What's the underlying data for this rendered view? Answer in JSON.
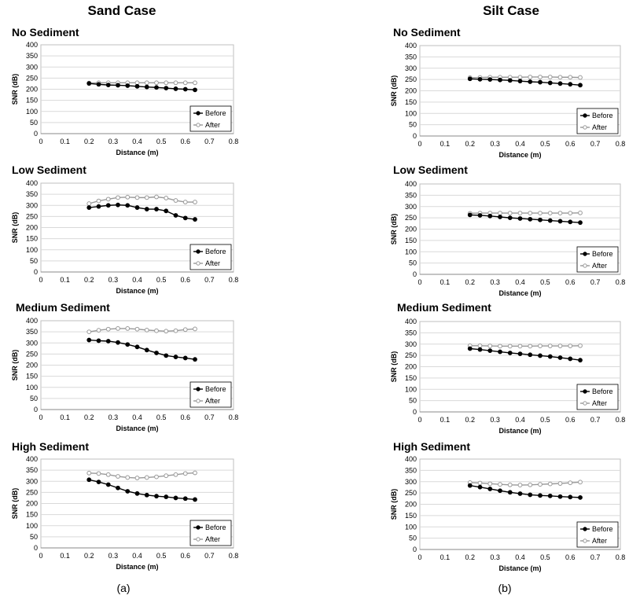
{
  "titles": {
    "left": "Sand Case",
    "right": "Silt Case",
    "left_caption": "(a)",
    "right_caption": "(b)"
  },
  "chart_data": [
    {
      "type": "line",
      "case": "Sand Case",
      "title": "No Sediment",
      "xlabel": "Distance (m)",
      "ylabel": "SNR (dB)",
      "xlim": [
        0,
        0.8
      ],
      "ylim": [
        0,
        400
      ],
      "xticks": [
        "0",
        "0.1",
        "0.2",
        "0.3",
        "0.4",
        "0.5",
        "0.6",
        "0.7",
        "0.8"
      ],
      "yticks": [
        "0",
        "50",
        "100",
        "150",
        "200",
        "250",
        "300",
        "350",
        "400"
      ],
      "grid": true,
      "legend": "bottom-right",
      "x": [
        0.2,
        0.24,
        0.28,
        0.32,
        0.36,
        0.4,
        0.44,
        0.48,
        0.52,
        0.56,
        0.6,
        0.64
      ],
      "series": [
        {
          "name": "Before",
          "color": "#000000",
          "marker": "filled-circle",
          "values": [
            226,
            222,
            219,
            218,
            216,
            213,
            210,
            208,
            205,
            202,
            200,
            197
          ]
        },
        {
          "name": "After",
          "color": "#999999",
          "marker": "open-circle",
          "values": [
            228,
            229,
            229,
            229,
            229,
            229,
            229,
            229,
            229,
            229,
            229,
            229
          ]
        }
      ]
    },
    {
      "type": "line",
      "case": "Sand Case",
      "title": "Low Sediment",
      "xlabel": "Distance (m)",
      "ylabel": "SNR (dB)",
      "xlim": [
        0,
        0.8
      ],
      "ylim": [
        0,
        400
      ],
      "xticks": [
        "0",
        "0.1",
        "0.2",
        "0.3",
        "0.4",
        "0.5",
        "0.6",
        "0.7",
        "0.8"
      ],
      "yticks": [
        "0",
        "50",
        "100",
        "150",
        "200",
        "250",
        "300",
        "350",
        "400"
      ],
      "grid": true,
      "legend": "bottom-right",
      "x": [
        0.2,
        0.24,
        0.28,
        0.32,
        0.36,
        0.4,
        0.44,
        0.48,
        0.52,
        0.56,
        0.6,
        0.64
      ],
      "series": [
        {
          "name": "Before",
          "color": "#000000",
          "marker": "filled-circle",
          "values": [
            290,
            295,
            300,
            302,
            300,
            290,
            283,
            283,
            275,
            255,
            243,
            237
          ]
        },
        {
          "name": "After",
          "color": "#999999",
          "marker": "open-circle",
          "values": [
            308,
            320,
            328,
            335,
            337,
            335,
            335,
            338,
            333,
            322,
            315,
            315
          ]
        }
      ]
    },
    {
      "type": "line",
      "case": "Sand Case",
      "title": "Medium Sediment",
      "xlabel": "Distance (m)",
      "ylabel": "SNR (dB)",
      "xlim": [
        0,
        0.8
      ],
      "ylim": [
        0,
        400
      ],
      "xticks": [
        "0",
        "0.1",
        "0.2",
        "0.3",
        "0.4",
        "0.5",
        "0.6",
        "0.7",
        "0.8"
      ],
      "yticks": [
        "0",
        "50",
        "100",
        "150",
        "200",
        "250",
        "300",
        "350",
        "400"
      ],
      "grid": true,
      "legend": "bottom-right",
      "x": [
        0.2,
        0.24,
        0.28,
        0.32,
        0.36,
        0.4,
        0.44,
        0.48,
        0.52,
        0.56,
        0.6,
        0.64
      ],
      "series": [
        {
          "name": "Before",
          "color": "#000000",
          "marker": "filled-circle",
          "values": [
            313,
            310,
            308,
            302,
            293,
            282,
            268,
            255,
            243,
            237,
            232,
            226
          ]
        },
        {
          "name": "After",
          "color": "#999999",
          "marker": "open-circle",
          "values": [
            350,
            357,
            362,
            365,
            365,
            362,
            358,
            355,
            353,
            355,
            360,
            363
          ]
        }
      ]
    },
    {
      "type": "line",
      "case": "Sand Case",
      "title": "High Sediment",
      "xlabel": "Distance (m)",
      "ylabel": "SNR (dB)",
      "xlim": [
        0,
        0.8
      ],
      "ylim": [
        0,
        400
      ],
      "xticks": [
        "0",
        "0.1",
        "0.2",
        "0.3",
        "0.4",
        "0.5",
        "0.6",
        "0.7",
        "0.8"
      ],
      "yticks": [
        "0",
        "50",
        "100",
        "150",
        "200",
        "250",
        "300",
        "350",
        "400"
      ],
      "grid": true,
      "legend": "bottom-right",
      "x": [
        0.2,
        0.24,
        0.28,
        0.32,
        0.36,
        0.4,
        0.44,
        0.48,
        0.52,
        0.56,
        0.6,
        0.64
      ],
      "series": [
        {
          "name": "Before",
          "color": "#000000",
          "marker": "filled-circle",
          "values": [
            307,
            297,
            285,
            270,
            255,
            245,
            238,
            233,
            230,
            225,
            222,
            218
          ]
        },
        {
          "name": "After",
          "color": "#999999",
          "marker": "open-circle",
          "values": [
            337,
            335,
            330,
            322,
            317,
            315,
            317,
            320,
            325,
            330,
            335,
            338
          ]
        }
      ]
    },
    {
      "type": "line",
      "case": "Silt Case",
      "title": "No Sediment",
      "xlabel": "Distance (m)",
      "ylabel": "SNR (dB)",
      "xlim": [
        0,
        0.8
      ],
      "ylim": [
        0,
        400
      ],
      "xticks": [
        "0",
        "0.1",
        "0.2",
        "0.3",
        "0.4",
        "0.5",
        "0.6",
        "0.7",
        "0.8"
      ],
      "yticks": [
        "0",
        "50",
        "100",
        "150",
        "200",
        "250",
        "300",
        "350",
        "400"
      ],
      "grid": true,
      "legend": "bottom-right",
      "x": [
        0.2,
        0.24,
        0.28,
        0.32,
        0.36,
        0.4,
        0.44,
        0.48,
        0.52,
        0.56,
        0.6,
        0.64
      ],
      "series": [
        {
          "name": "Before",
          "color": "#000000",
          "marker": "filled-circle",
          "values": [
            253,
            251,
            250,
            248,
            246,
            243,
            240,
            238,
            235,
            232,
            229,
            225
          ]
        },
        {
          "name": "After",
          "color": "#999999",
          "marker": "open-circle",
          "values": [
            258,
            259,
            260,
            260,
            260,
            260,
            261,
            261,
            261,
            260,
            260,
            259
          ]
        }
      ]
    },
    {
      "type": "line",
      "case": "Silt Case",
      "title": "Low Sediment",
      "xlabel": "Distance (m)",
      "ylabel": "SNR (dB)",
      "xlim": [
        0,
        0.8
      ],
      "ylim": [
        0,
        400
      ],
      "xticks": [
        "0",
        "0.1",
        "0.2",
        "0.3",
        "0.4",
        "0.5",
        "0.6",
        "0.7",
        "0.8"
      ],
      "yticks": [
        "0",
        "50",
        "100",
        "150",
        "200",
        "250",
        "300",
        "350",
        "400"
      ],
      "grid": true,
      "legend": "bottom-right",
      "x": [
        0.2,
        0.24,
        0.28,
        0.32,
        0.36,
        0.4,
        0.44,
        0.48,
        0.52,
        0.56,
        0.6,
        0.64
      ],
      "series": [
        {
          "name": "Before",
          "color": "#000000",
          "marker": "filled-circle",
          "values": [
            263,
            261,
            258,
            254,
            250,
            247,
            244,
            241,
            238,
            235,
            232,
            229
          ]
        },
        {
          "name": "After",
          "color": "#999999",
          "marker": "open-circle",
          "values": [
            270,
            271,
            271,
            271,
            271,
            271,
            271,
            271,
            271,
            271,
            271,
            272
          ]
        }
      ]
    },
    {
      "type": "line",
      "case": "Silt Case",
      "title": "Medium Sediment",
      "xlabel": "Distance (m)",
      "ylabel": "SNR (dB)",
      "xlim": [
        0,
        0.8
      ],
      "ylim": [
        0,
        400
      ],
      "xticks": [
        "0",
        "0.1",
        "0.2",
        "0.3",
        "0.4",
        "0.5",
        "0.6",
        "0.7",
        "0.8"
      ],
      "yticks": [
        "0",
        "50",
        "100",
        "150",
        "200",
        "250",
        "300",
        "350",
        "400"
      ],
      "grid": true,
      "legend": "bottom-right",
      "x": [
        0.2,
        0.24,
        0.28,
        0.32,
        0.36,
        0.4,
        0.44,
        0.48,
        0.52,
        0.56,
        0.6,
        0.64
      ],
      "series": [
        {
          "name": "Before",
          "color": "#000000",
          "marker": "filled-circle",
          "values": [
            280,
            276,
            271,
            266,
            261,
            257,
            253,
            249,
            245,
            240,
            235,
            229
          ]
        },
        {
          "name": "After",
          "color": "#999999",
          "marker": "open-circle",
          "values": [
            293,
            293,
            292,
            291,
            291,
            291,
            291,
            292,
            292,
            292,
            292,
            293
          ]
        }
      ]
    },
    {
      "type": "line",
      "case": "Silt Case",
      "title": "High Sediment",
      "xlabel": "Distance (m)",
      "ylabel": "SNR (dB)",
      "xlim": [
        0,
        0.8
      ],
      "ylim": [
        0,
        400
      ],
      "xticks": [
        "0",
        "0.1",
        "0.2",
        "0.3",
        "0.4",
        "0.5",
        "0.6",
        "0.7",
        "0.8"
      ],
      "yticks": [
        "0",
        "50",
        "100",
        "150",
        "200",
        "250",
        "300",
        "350",
        "400"
      ],
      "grid": true,
      "legend": "bottom-right",
      "x": [
        0.2,
        0.24,
        0.28,
        0.32,
        0.36,
        0.4,
        0.44,
        0.48,
        0.52,
        0.56,
        0.6,
        0.64
      ],
      "series": [
        {
          "name": "Before",
          "color": "#000000",
          "marker": "filled-circle",
          "values": [
            283,
            276,
            268,
            260,
            253,
            247,
            242,
            239,
            237,
            234,
            232,
            230
          ]
        },
        {
          "name": "After",
          "color": "#999999",
          "marker": "open-circle",
          "values": [
            296,
            294,
            291,
            288,
            286,
            285,
            286,
            288,
            290,
            292,
            295,
            298
          ]
        }
      ]
    }
  ]
}
